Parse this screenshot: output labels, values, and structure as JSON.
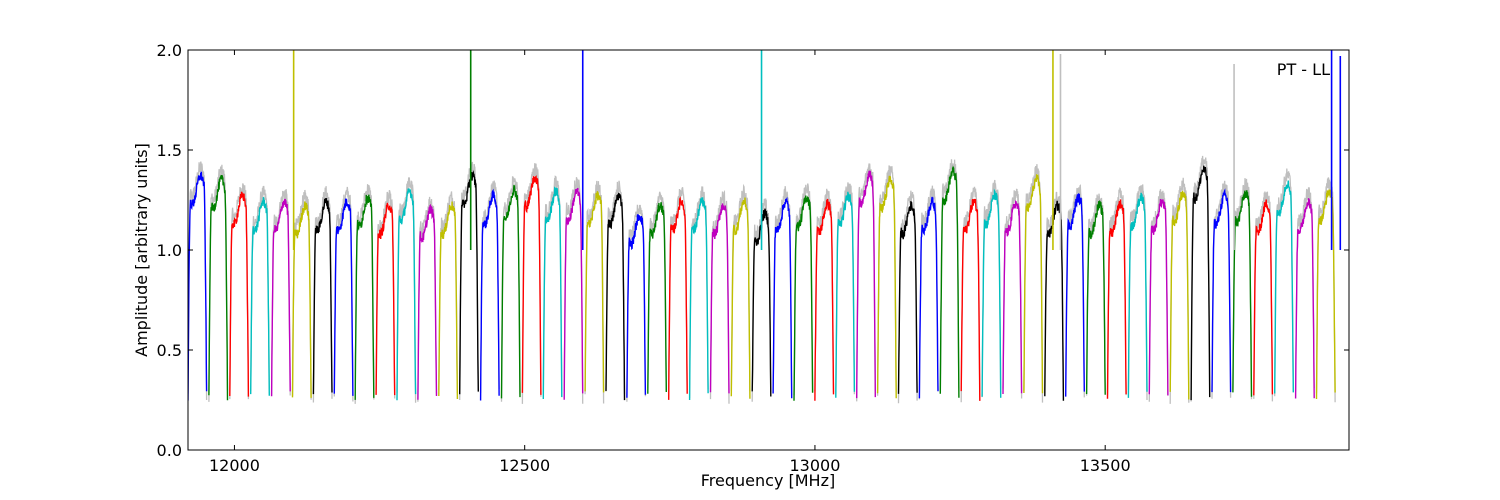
{
  "chart_data": {
    "type": "line",
    "xlabel": "Frequency [MHz]",
    "ylabel": "Amplitude [arbitrary units]",
    "xlim": [
      11920,
      13920
    ],
    "ylim": [
      0.0,
      2.0
    ],
    "xticks": [
      12000,
      12500,
      13000,
      13500
    ],
    "xtick_labels": [
      "12000",
      "12500",
      "13000",
      "13500"
    ],
    "yticks": [
      0.0,
      0.5,
      1.0,
      1.5,
      2.0
    ],
    "ytick_labels": [
      "0.0",
      "0.5",
      "1.0",
      "1.5",
      "2.0"
    ],
    "grid": false,
    "legend": {
      "text": "PT - LL",
      "placement": "top-right"
    },
    "reference_series_color": "#bfbfbf",
    "palette": [
      "#0000ff",
      "#007f00",
      "#ff0000",
      "#00bfbf",
      "#bf00bf",
      "#bfbf00",
      "#000000"
    ],
    "band_width_mhz": 32,
    "bands": [
      {
        "start": 11920,
        "peak": 1.35,
        "color": "#0000ff"
      },
      {
        "start": 11956,
        "peak": 1.33,
        "color": "#007f00"
      },
      {
        "start": 11992,
        "peak": 1.25,
        "color": "#ff0000"
      },
      {
        "start": 12028,
        "peak": 1.22,
        "color": "#00bfbf"
      },
      {
        "start": 12064,
        "peak": 1.22,
        "color": "#bf00bf"
      },
      {
        "start": 12100,
        "peak": 1.2,
        "color": "#bfbf00"
      },
      {
        "start": 12136,
        "peak": 1.22,
        "color": "#000000"
      },
      {
        "start": 12172,
        "peak": 1.22,
        "color": "#0000ff"
      },
      {
        "start": 12208,
        "peak": 1.24,
        "color": "#007f00"
      },
      {
        "start": 12244,
        "peak": 1.2,
        "color": "#ff0000"
      },
      {
        "start": 12280,
        "peak": 1.27,
        "color": "#00bfbf"
      },
      {
        "start": 12316,
        "peak": 1.18,
        "color": "#bf00bf"
      },
      {
        "start": 12352,
        "peak": 1.2,
        "color": "#bfbf00"
      },
      {
        "start": 12388,
        "peak": 1.35,
        "color": "#000000"
      },
      {
        "start": 12424,
        "peak": 1.25,
        "color": "#0000ff"
      },
      {
        "start": 12460,
        "peak": 1.28,
        "color": "#007f00"
      },
      {
        "start": 12496,
        "peak": 1.34,
        "color": "#ff0000"
      },
      {
        "start": 12532,
        "peak": 1.27,
        "color": "#00bfbf"
      },
      {
        "start": 12568,
        "peak": 1.27,
        "color": "#bf00bf"
      },
      {
        "start": 12604,
        "peak": 1.25,
        "color": "#bfbf00"
      },
      {
        "start": 12640,
        "peak": 1.25,
        "color": "#000000"
      },
      {
        "start": 12676,
        "peak": 1.15,
        "color": "#0000ff"
      },
      {
        "start": 12712,
        "peak": 1.2,
        "color": "#007f00"
      },
      {
        "start": 12748,
        "peak": 1.22,
        "color": "#ff0000"
      },
      {
        "start": 12784,
        "peak": 1.22,
        "color": "#00bfbf"
      },
      {
        "start": 12820,
        "peak": 1.2,
        "color": "#bf00bf"
      },
      {
        "start": 12856,
        "peak": 1.22,
        "color": "#bfbf00"
      },
      {
        "start": 12892,
        "peak": 1.16,
        "color": "#000000"
      },
      {
        "start": 12928,
        "peak": 1.22,
        "color": "#0000ff"
      },
      {
        "start": 12964,
        "peak": 1.24,
        "color": "#007f00"
      },
      {
        "start": 13000,
        "peak": 1.21,
        "color": "#ff0000"
      },
      {
        "start": 13036,
        "peak": 1.25,
        "color": "#00bfbf"
      },
      {
        "start": 13072,
        "peak": 1.35,
        "color": "#bf00bf"
      },
      {
        "start": 13108,
        "peak": 1.33,
        "color": "#bfbf00"
      },
      {
        "start": 13144,
        "peak": 1.2,
        "color": "#000000"
      },
      {
        "start": 13180,
        "peak": 1.22,
        "color": "#0000ff"
      },
      {
        "start": 13216,
        "peak": 1.37,
        "color": "#007f00"
      },
      {
        "start": 13252,
        "peak": 1.22,
        "color": "#ff0000"
      },
      {
        "start": 13288,
        "peak": 1.25,
        "color": "#00bfbf"
      },
      {
        "start": 13324,
        "peak": 1.21,
        "color": "#bf00bf"
      },
      {
        "start": 13360,
        "peak": 1.33,
        "color": "#bfbf00"
      },
      {
        "start": 13396,
        "peak": 1.2,
        "color": "#000000"
      },
      {
        "start": 13432,
        "peak": 1.24,
        "color": "#0000ff"
      },
      {
        "start": 13468,
        "peak": 1.2,
        "color": "#007f00"
      },
      {
        "start": 13504,
        "peak": 1.21,
        "color": "#ff0000"
      },
      {
        "start": 13540,
        "peak": 1.24,
        "color": "#00bfbf"
      },
      {
        "start": 13576,
        "peak": 1.22,
        "color": "#bf00bf"
      },
      {
        "start": 13612,
        "peak": 1.26,
        "color": "#bfbf00"
      },
      {
        "start": 13648,
        "peak": 1.38,
        "color": "#000000"
      },
      {
        "start": 13684,
        "peak": 1.25,
        "color": "#0000ff"
      },
      {
        "start": 13720,
        "peak": 1.26,
        "color": "#007f00"
      },
      {
        "start": 13756,
        "peak": 1.21,
        "color": "#ff0000"
      },
      {
        "start": 13792,
        "peak": 1.31,
        "color": "#00bfbf"
      },
      {
        "start": 13828,
        "peak": 1.22,
        "color": "#bf00bf"
      },
      {
        "start": 13864,
        "peak": 1.27,
        "color": "#bfbf00"
      }
    ],
    "spikes": [
      {
        "x": 12102,
        "top": 2.0,
        "color": "#bfbf00"
      },
      {
        "x": 12407,
        "top": 2.0,
        "color": "#007f00"
      },
      {
        "x": 12600,
        "top": 2.0,
        "color": "#0000ff"
      },
      {
        "x": 12908,
        "top": 2.0,
        "color": "#00bfbf"
      },
      {
        "x": 13410,
        "top": 2.0,
        "color": "#bfbf00"
      },
      {
        "x": 13423,
        "top": 1.98,
        "color": "#bfbfbf"
      },
      {
        "x": 13722,
        "top": 1.93,
        "color": "#bfbfbf"
      },
      {
        "x": 13890,
        "top": 2.0,
        "color": "#0000ff"
      },
      {
        "x": 13905,
        "top": 1.97,
        "color": "#0000ff"
      }
    ]
  }
}
